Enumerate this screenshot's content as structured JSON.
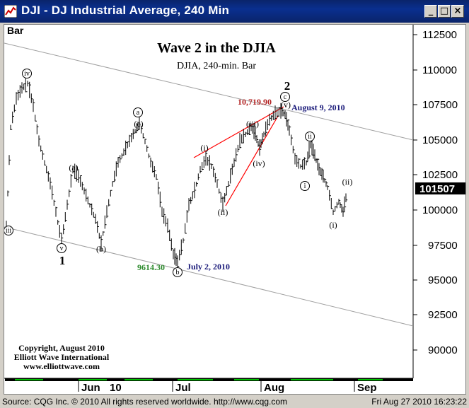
{
  "window": {
    "title": "DJI - DJ Industrial Average, 240 Min",
    "minimize_glyph": "_",
    "restore_glyph": "□",
    "close_glyph": "×"
  },
  "chart": {
    "bar_label": "Bar",
    "title": "Wave 2 in the DJIA",
    "subtitle": "DJIA, 240-min. Bar",
    "current_price": "101507",
    "copyright_lines": [
      "Copyright, August 2010",
      "Elliott Wave International",
      "www.elliottwave.com"
    ],
    "annotations": {
      "high_value": "10,719.90",
      "high_date": "August 9, 2010",
      "low_value": "9614.30",
      "low_date": "July 2, 2010"
    },
    "wave_labels": {
      "w1": "1",
      "w2": "2",
      "a": "(a)",
      "b": "(b)",
      "c": "(c)",
      "i": "(i)",
      "ii": "(ii)",
      "iii": "(iii)",
      "iv": "(iv)",
      "v": "(v)",
      "circle_i": "i",
      "circle_ii": "ii",
      "circle_iii": "iii",
      "circle_iv": "iv",
      "circle_v": "v",
      "circle_a": "a",
      "circle_b": "b",
      "circle_c": "c"
    },
    "colors": {
      "high_value": "#b22222",
      "low_value": "#2e8b2e",
      "date": "#1a1a7a",
      "trendline": "#ff0000",
      "channel": "#a0a0a0"
    }
  },
  "chart_data": {
    "type": "bar",
    "y_ticks": [
      "112500",
      "110000",
      "107500",
      "105000",
      "102500",
      "100000",
      "97500",
      "95000",
      "92500",
      "90000"
    ],
    "x_ticks": [
      "Jun",
      "10",
      "Jul",
      "Aug",
      "Sep"
    ],
    "y_axis_range": [
      88500,
      113500
    ],
    "last_price": 101507
  },
  "statusbar": {
    "left": "Source: CQG Inc. © 2010 All rights reserved worldwide.  http://www.cqg.com",
    "right": "Fri Aug 27 2010 16:23:22"
  }
}
